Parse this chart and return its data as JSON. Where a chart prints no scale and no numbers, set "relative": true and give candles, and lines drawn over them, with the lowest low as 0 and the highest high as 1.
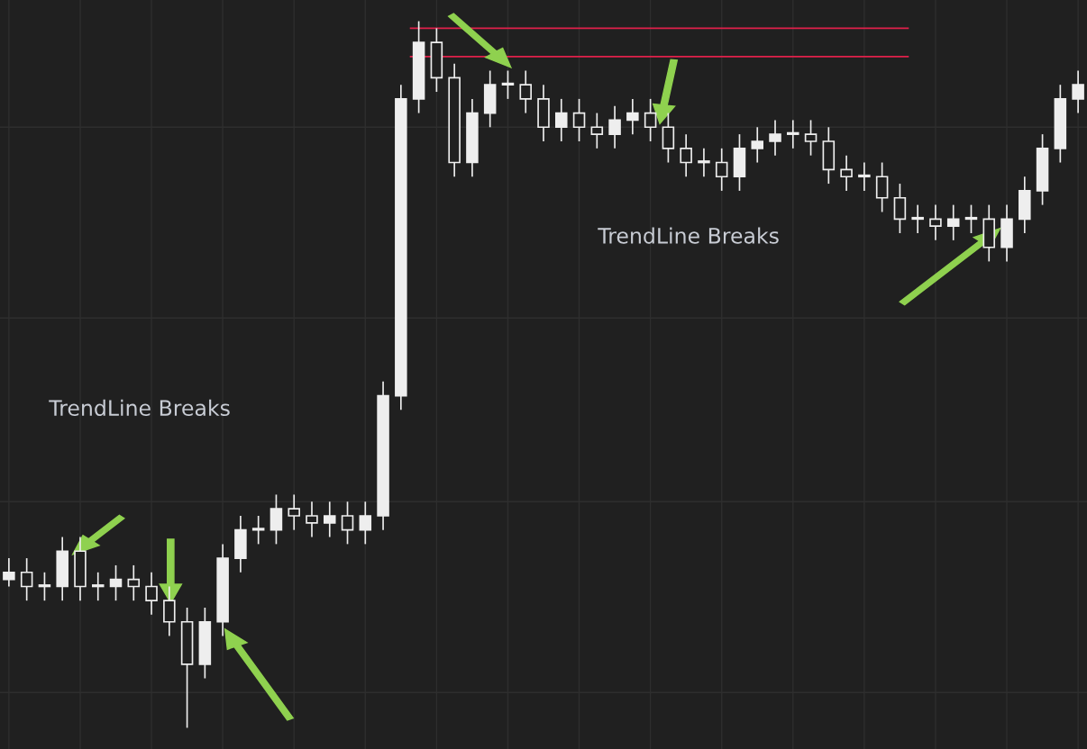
{
  "chart_data": {
    "type": "candlestick",
    "relative": true,
    "grid": true,
    "tick_labels": false,
    "color": "#eeeeee",
    "categories": [
      null,
      null,
      null,
      null,
      null,
      null,
      null,
      null,
      null,
      null,
      null,
      null,
      null,
      null,
      null,
      null,
      null,
      null,
      null,
      null,
      null,
      null,
      null,
      null,
      null,
      null,
      null,
      null,
      null,
      null,
      null,
      null,
      null,
      null,
      null,
      null,
      null,
      null,
      null,
      null,
      null,
      null,
      null,
      null,
      null,
      null,
      null,
      null,
      null,
      null,
      null,
      null,
      null,
      null,
      null,
      null,
      null,
      null,
      null,
      null,
      null
    ],
    "ohlc": [
      [
        0.21,
        0.24,
        0.2,
        0.22
      ],
      [
        0.22,
        0.24,
        0.18,
        0.2
      ],
      [
        0.2,
        0.22,
        0.18,
        0.2
      ],
      [
        0.2,
        0.27,
        0.18,
        0.25
      ],
      [
        0.25,
        0.27,
        0.18,
        0.2
      ],
      [
        0.2,
        0.22,
        0.18,
        0.2
      ],
      [
        0.2,
        0.23,
        0.18,
        0.21
      ],
      [
        0.21,
        0.23,
        0.18,
        0.2
      ],
      [
        0.2,
        0.22,
        0.16,
        0.18
      ],
      [
        0.18,
        0.2,
        0.13,
        0.15
      ],
      [
        0.15,
        0.17,
        0.0,
        0.09
      ],
      [
        0.09,
        0.17,
        0.07,
        0.15
      ],
      [
        0.15,
        0.26,
        0.13,
        0.24
      ],
      [
        0.24,
        0.3,
        0.22,
        0.28
      ],
      [
        0.28,
        0.3,
        0.26,
        0.28
      ],
      [
        0.28,
        0.33,
        0.26,
        0.31
      ],
      [
        0.31,
        0.33,
        0.28,
        0.3
      ],
      [
        0.3,
        0.32,
        0.27,
        0.29
      ],
      [
        0.29,
        0.32,
        0.27,
        0.3
      ],
      [
        0.3,
        0.32,
        0.26,
        0.28
      ],
      [
        0.28,
        0.32,
        0.26,
        0.3
      ],
      [
        0.3,
        0.49,
        0.28,
        0.47
      ],
      [
        0.47,
        0.91,
        0.45,
        0.89
      ],
      [
        0.89,
        1.0,
        0.87,
        0.97
      ],
      [
        0.97,
        0.99,
        0.9,
        0.92
      ],
      [
        0.92,
        0.94,
        0.78,
        0.8
      ],
      [
        0.8,
        0.89,
        0.78,
        0.87
      ],
      [
        0.87,
        0.93,
        0.85,
        0.91
      ],
      [
        0.91,
        0.93,
        0.89,
        0.91
      ],
      [
        0.91,
        0.93,
        0.87,
        0.89
      ],
      [
        0.89,
        0.91,
        0.83,
        0.85
      ],
      [
        0.85,
        0.89,
        0.83,
        0.87
      ],
      [
        0.87,
        0.89,
        0.83,
        0.85
      ],
      [
        0.85,
        0.87,
        0.82,
        0.84
      ],
      [
        0.84,
        0.88,
        0.82,
        0.86
      ],
      [
        0.86,
        0.89,
        0.84,
        0.87
      ],
      [
        0.87,
        0.89,
        0.83,
        0.85
      ],
      [
        0.85,
        0.87,
        0.8,
        0.82
      ],
      [
        0.82,
        0.84,
        0.78,
        0.8
      ],
      [
        0.8,
        0.82,
        0.78,
        0.8
      ],
      [
        0.8,
        0.82,
        0.76,
        0.78
      ],
      [
        0.78,
        0.84,
        0.76,
        0.82
      ],
      [
        0.82,
        0.85,
        0.8,
        0.83
      ],
      [
        0.83,
        0.86,
        0.81,
        0.84
      ],
      [
        0.84,
        0.86,
        0.82,
        0.84
      ],
      [
        0.84,
        0.86,
        0.81,
        0.83
      ],
      [
        0.83,
        0.85,
        0.77,
        0.79
      ],
      [
        0.79,
        0.81,
        0.76,
        0.78
      ],
      [
        0.78,
        0.8,
        0.76,
        0.78
      ],
      [
        0.78,
        0.8,
        0.73,
        0.75
      ],
      [
        0.75,
        0.77,
        0.7,
        0.72
      ],
      [
        0.72,
        0.74,
        0.7,
        0.72
      ],
      [
        0.72,
        0.74,
        0.69,
        0.71
      ],
      [
        0.71,
        0.74,
        0.69,
        0.72
      ],
      [
        0.72,
        0.74,
        0.7,
        0.72
      ],
      [
        0.72,
        0.74,
        0.66,
        0.68
      ],
      [
        0.68,
        0.74,
        0.66,
        0.72
      ],
      [
        0.72,
        0.78,
        0.7,
        0.76
      ],
      [
        0.76,
        0.84,
        0.74,
        0.82
      ],
      [
        0.82,
        0.91,
        0.8,
        0.89
      ],
      [
        0.89,
        0.93,
        0.87,
        0.91
      ]
    ],
    "ref_lines": [
      {
        "axis": "y",
        "value": 0.99,
        "color": "#e0204a"
      },
      {
        "axis": "y",
        "value": 0.95,
        "color": "#e0204a"
      }
    ],
    "annotations": [
      "TrendLine Breaks",
      "TrendLine Breaks"
    ]
  }
}
